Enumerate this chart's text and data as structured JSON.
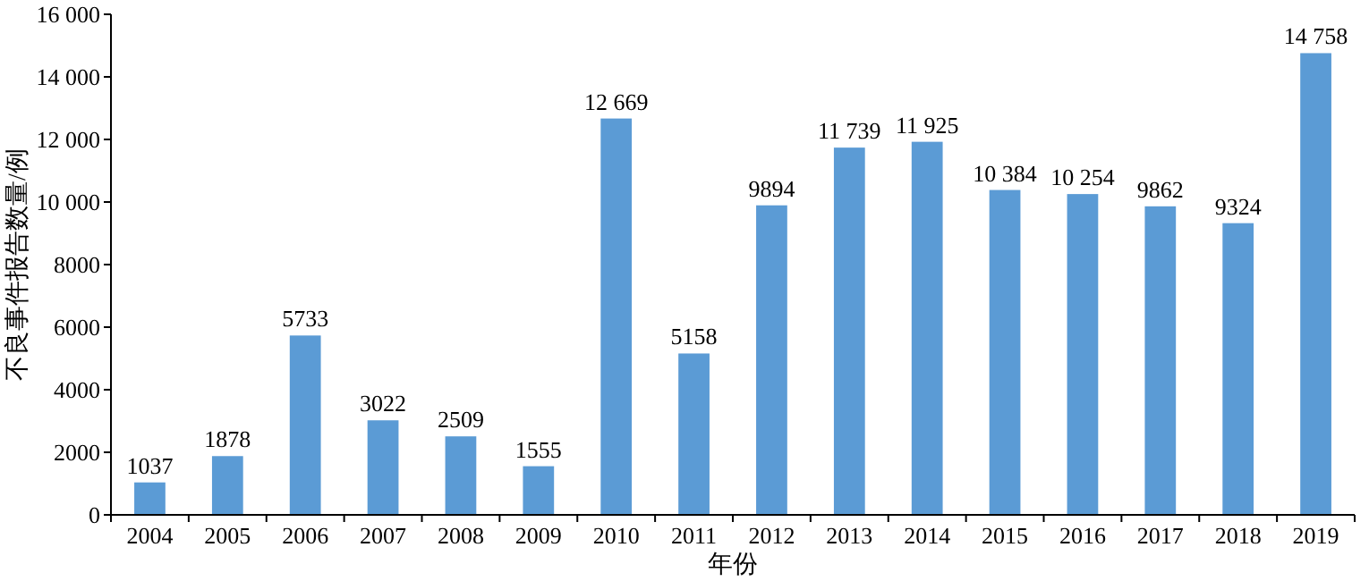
{
  "chart_data": {
    "type": "bar",
    "xlabel": "年份",
    "ylabel": "不良事件报告数量/例",
    "categories": [
      "2004",
      "2005",
      "2006",
      "2007",
      "2008",
      "2009",
      "2010",
      "2011",
      "2012",
      "2013",
      "2014",
      "2015",
      "2016",
      "2017",
      "2018",
      "2019"
    ],
    "values": [
      1037,
      1878,
      5733,
      3022,
      2509,
      1555,
      12669,
      5158,
      9894,
      11739,
      11925,
      10384,
      10254,
      9862,
      9324,
      14758
    ],
    "value_labels": [
      "1037",
      "1878",
      "5733",
      "3022",
      "2509",
      "1555",
      "12 669",
      "5158",
      "9894",
      "11 739",
      "11 925",
      "10 384",
      "10 254",
      "9862",
      "9324",
      "14 758"
    ],
    "color": "#5b9bd5",
    "ylim": [
      0,
      16000
    ],
    "yticks": [
      0,
      2000,
      4000,
      6000,
      8000,
      {
        "value": 10000,
        "label": "10 000"
      },
      {
        "value": 12000,
        "label": "12 000"
      },
      {
        "value": 14000,
        "label": "14 000"
      },
      {
        "value": 16000,
        "label": "16 000"
      }
    ]
  }
}
